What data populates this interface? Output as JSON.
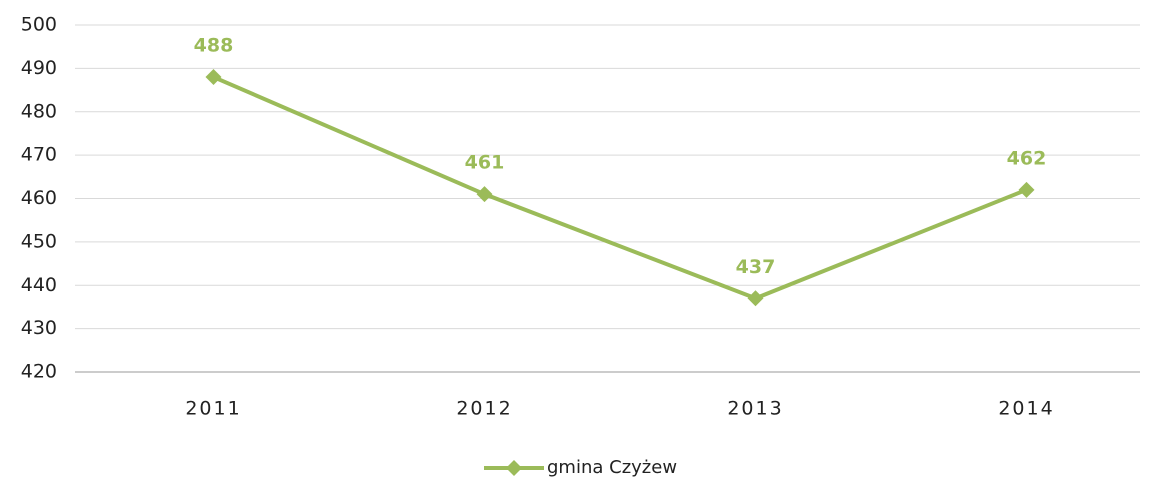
{
  "chart_data": {
    "type": "line",
    "categories": [
      "2011",
      "2012",
      "2013",
      "2014"
    ],
    "series": [
      {
        "name": "gmina Czyżew",
        "color": "#9bbb59",
        "values": [
          488,
          461,
          437,
          462
        ]
      }
    ],
    "ylim": [
      420,
      500
    ],
    "yticks": [
      420,
      430,
      440,
      450,
      460,
      470,
      480,
      490,
      500
    ],
    "grid": true,
    "legend": "bottom"
  }
}
